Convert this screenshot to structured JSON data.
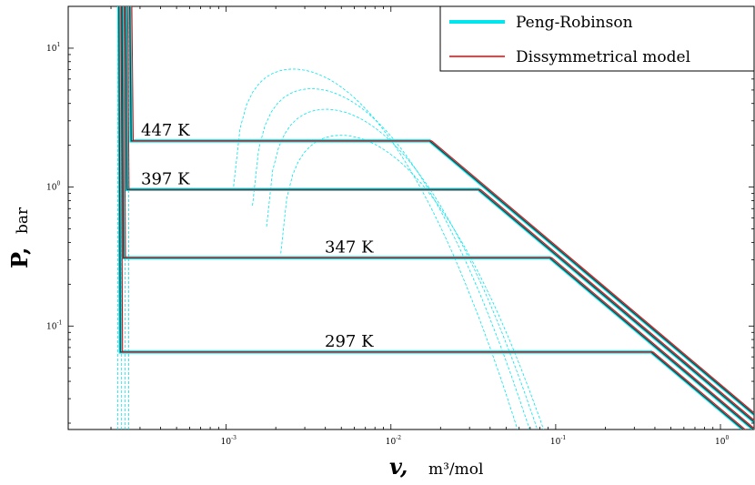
{
  "chart_data": {
    "type": "line",
    "title": "",
    "xlabel": "v,",
    "xlabel_unit": "m³/mol",
    "ylabel": "P,",
    "ylabel_unit": "bar",
    "xscale": "log",
    "yscale": "log",
    "xlim": [
      0.00011,
      1.6
    ],
    "ylim": [
      0.018,
      20
    ],
    "grid": false,
    "legend_position": "top-right",
    "x_ticks": [
      {
        "base": "10",
        "exp": "-3",
        "value": 0.001
      },
      {
        "base": "10",
        "exp": "-2",
        "value": 0.01
      },
      {
        "base": "10",
        "exp": "-1",
        "value": 0.1
      },
      {
        "base": "10",
        "exp": "0",
        "value": 1
      }
    ],
    "y_ticks": [
      {
        "base": "10",
        "exp": "-1",
        "value": 0.1
      },
      {
        "base": "10",
        "exp": "0",
        "value": 1
      },
      {
        "base": "10",
        "exp": "1",
        "value": 10
      }
    ],
    "series": [
      {
        "name": "Peng-Robinson",
        "color": "#00e5ee",
        "style": "thick"
      },
      {
        "name": "Dissymmetrical model",
        "color": "#ee0000",
        "style": "thin"
      }
    ],
    "isotherms": [
      {
        "label": "447 K",
        "v_liquid": 0.000265,
        "p_sat": 2.15,
        "v_vapor": 0.0172
      },
      {
        "label": "397 K",
        "v_liquid": 0.00025,
        "p_sat": 0.96,
        "v_vapor": 0.034
      },
      {
        "label": "347 K",
        "v_liquid": 0.000238,
        "p_sat": 0.31,
        "v_vapor": 0.092
      },
      {
        "label": "297 K",
        "v_liquid": 0.000228,
        "p_sat": 0.065,
        "v_vapor": 0.38
      }
    ],
    "spinodal_dashed_color": "#00e5ee"
  }
}
